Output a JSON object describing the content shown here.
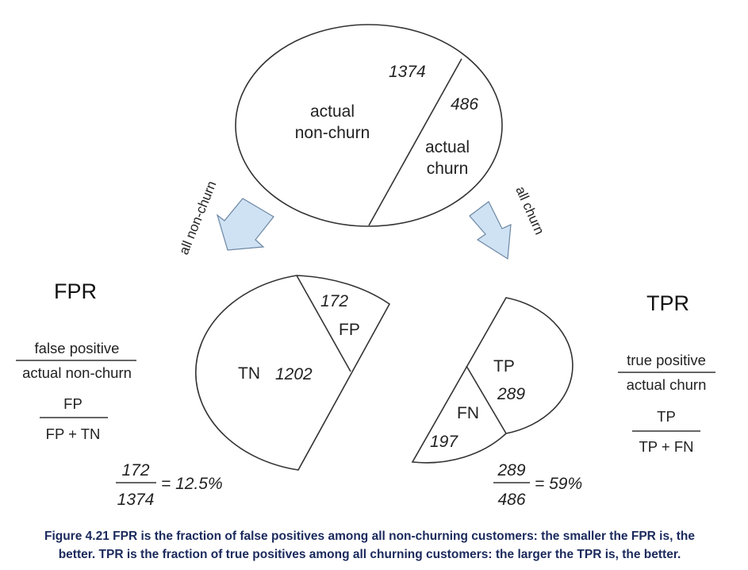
{
  "top_ellipse": {
    "count_non_churn": "1374",
    "count_churn": "486",
    "label_non_churn": [
      "actual",
      "non-churn"
    ],
    "label_churn": [
      "actual",
      "churn"
    ]
  },
  "arrows": {
    "left_label": "all non-churn",
    "right_label": "all churn"
  },
  "left_shape": {
    "fp_count": "172",
    "fp_label": "FP",
    "tn_label": "TN",
    "tn_count": "1202"
  },
  "right_shape": {
    "tp_label": "TP",
    "tp_count": "289",
    "fn_label": "FN",
    "fn_count": "197"
  },
  "fpr": {
    "title": "FPR",
    "frac1_num": "false positive",
    "frac1_den": "actual non-churn",
    "frac2_num": "FP",
    "frac2_den": "FP + TN",
    "result_num": "172",
    "result_den": "1374",
    "result_value": "= 12.5%"
  },
  "tpr": {
    "title": "TPR",
    "frac1_num": "true positive",
    "frac1_den": "actual churn",
    "frac2_num": "TP",
    "frac2_den": "TP + FN",
    "result_num": "289",
    "result_den": "486",
    "result_value": "= 59%"
  },
  "caption": {
    "line1": "Figure 4.21 FPR is the fraction of false positives among all non-churning customers: the smaller the FPR is, the",
    "line2": "better. TPR is the fraction of true positives among all churning customers: the larger the TPR is, the better."
  }
}
